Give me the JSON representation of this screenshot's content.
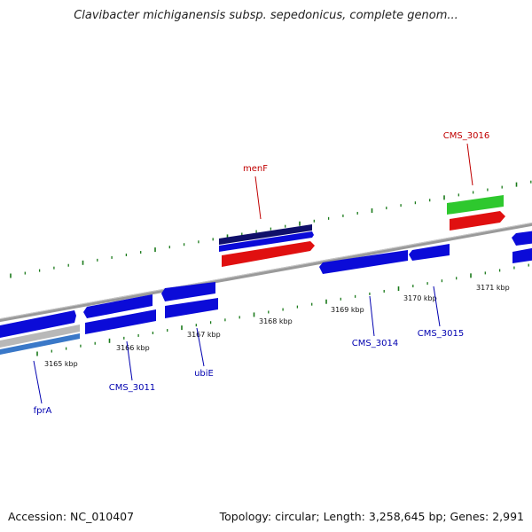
{
  "title": "Clavibacter michiganensis subsp. sepedonicus, complete genom...",
  "footer": {
    "accession": "Accession: NC_010407",
    "topology": "Topology: circular; Length: 3,258,645 bp; Genes: 2,991"
  },
  "colors": {
    "backbone": "#8a8a8a",
    "forward_gene": "#0b0bd8",
    "reverse_gene": "#0b0bd8",
    "rna_red": "#e01010",
    "green_feature": "#2ec82e",
    "navy_feature": "#10106a",
    "tick": "#1a7a1a",
    "label_blue": "#0000b0",
    "label_red": "#c00000"
  },
  "kbp_ticks": [
    {
      "label": "3165 kbp"
    },
    {
      "label": "3166 kbp"
    },
    {
      "label": "3167 kbp"
    },
    {
      "label": "3168 kbp"
    },
    {
      "label": "3169 kbp"
    },
    {
      "label": "3170 kbp"
    },
    {
      "label": "3171 kbp"
    }
  ],
  "gene_labels": [
    {
      "name": "fprA",
      "color": "blue"
    },
    {
      "name": "CMS_3011",
      "color": "blue"
    },
    {
      "name": "ubiE",
      "color": "blue"
    },
    {
      "name": "menF",
      "color": "red"
    },
    {
      "name": "CMS_3014",
      "color": "blue"
    },
    {
      "name": "CMS_3015",
      "color": "blue"
    },
    {
      "name": "CMS_3016",
      "color": "red"
    }
  ]
}
